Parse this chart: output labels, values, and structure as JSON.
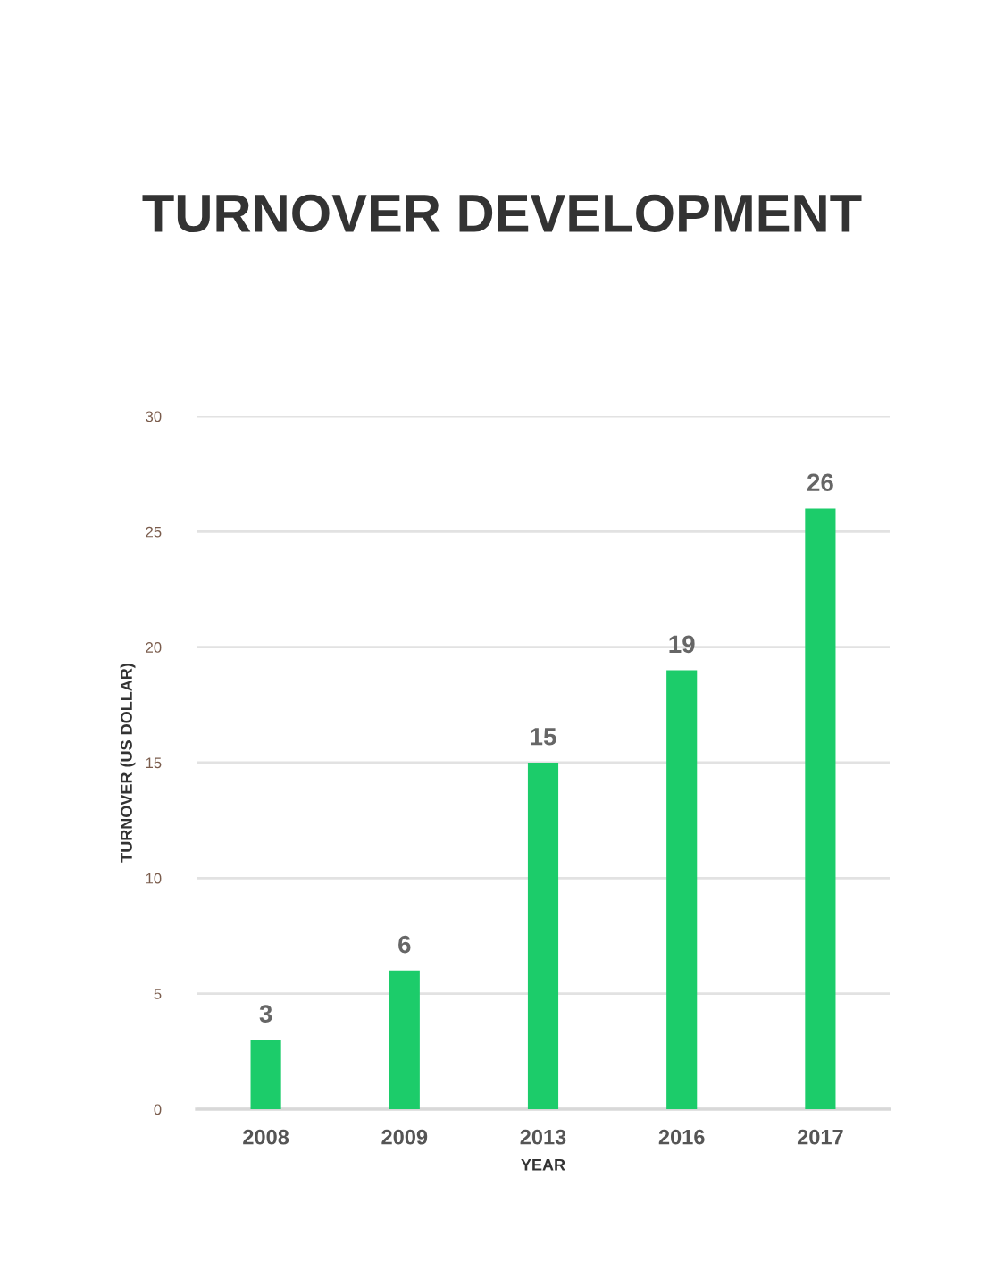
{
  "chart_data": {
    "type": "bar",
    "title": "TURNOVER DEVELOPMENT",
    "xlabel": "YEAR",
    "ylabel": "TURNOVER (US DOLLAR)",
    "categories": [
      "2008",
      "2009",
      "2013",
      "2016",
      "2017"
    ],
    "values": [
      3,
      6,
      15,
      19,
      26
    ],
    "color": "#1ccc6a",
    "ylim": [
      0,
      30
    ],
    "yticks": [
      0,
      5,
      10,
      15,
      20,
      25,
      30
    ],
    "grid": "y",
    "data_labels": true
  }
}
